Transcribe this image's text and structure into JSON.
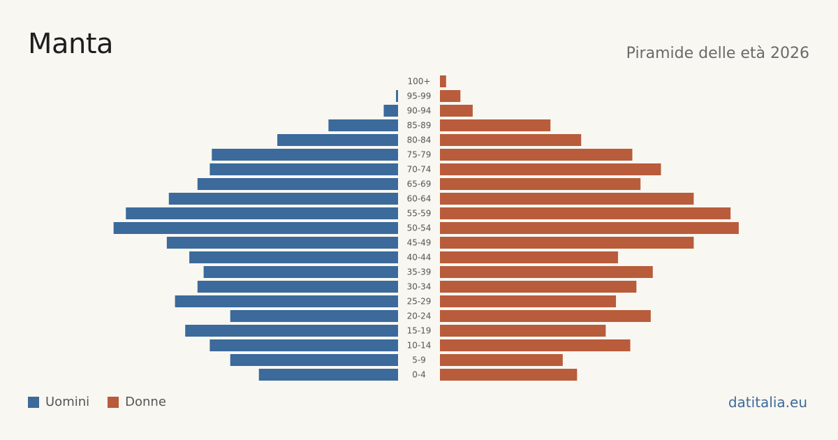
{
  "header": {
    "title": "Manta",
    "subtitle": "Piramide delle età 2026"
  },
  "legend": {
    "men_label": "Uomini",
    "women_label": "Donne"
  },
  "colors": {
    "men": "#3b6a9b",
    "women": "#b85c3b",
    "background": "#f9f7f2"
  },
  "footer": {
    "source": "datitalia.eu"
  },
  "chart_data": {
    "type": "bar",
    "orientation": "horizontal-pyramid",
    "categories": [
      "100+",
      "95-99",
      "90-94",
      "85-89",
      "80-84",
      "75-79",
      "70-74",
      "65-69",
      "60-64",
      "55-59",
      "50-54",
      "45-49",
      "40-44",
      "35-39",
      "30-34",
      "25-29",
      "20-24",
      "15-19",
      "10-14",
      "5-9",
      "0-4"
    ],
    "series": [
      {
        "name": "Uomini",
        "values": [
          0,
          1,
          7,
          34,
          59,
          91,
          92,
          98,
          112,
          133,
          139,
          113,
          102,
          95,
          98,
          109,
          82,
          104,
          92,
          82,
          68
        ]
      },
      {
        "name": "Donne",
        "values": [
          3,
          10,
          16,
          54,
          69,
          94,
          108,
          98,
          124,
          142,
          146,
          124,
          87,
          104,
          96,
          86,
          103,
          81,
          93,
          60,
          67
        ]
      }
    ],
    "legend_position": "bottom-left",
    "grid": false
  }
}
